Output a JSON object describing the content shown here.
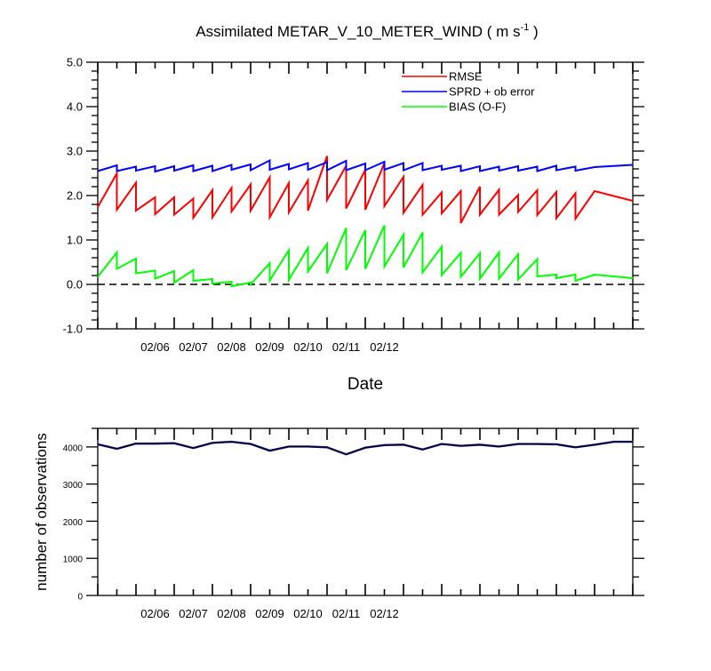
{
  "title_main": "Assimilated METAR_V_10_METER_WIND ( m s",
  "title_sup": "-1",
  "title_close": " )",
  "chart_data": [
    {
      "type": "line",
      "xlabel": "Date",
      "ylabel": "",
      "ylim": [
        -1.0,
        5.0
      ],
      "yticks": [
        "-1.0",
        "0.0",
        "1.0",
        "2.0",
        "3.0",
        "4.0",
        "5.0"
      ],
      "xlim": [
        0,
        14
      ],
      "x_tick_labels": [
        "02/06",
        "02/07",
        "02/08",
        "02/09",
        "02/10",
        "02/11",
        "02/12"
      ],
      "reference_line": 0.0,
      "legend_position": "top-right",
      "x": [
        0,
        0.5,
        1,
        1.5,
        2,
        2.5,
        3,
        3.5,
        4,
        4.5,
        5,
        5.5,
        6,
        6.5,
        7,
        7.5,
        8,
        8.5,
        9,
        9.5,
        10,
        10.5,
        11,
        11.5,
        12,
        12.5,
        13,
        13.5,
        14
      ],
      "series": [
        {
          "name": "RMSE",
          "color": "#ff0000",
          "pre": [
            1.74,
            1.68,
            1.66,
            1.58,
            1.57,
            1.5,
            1.51,
            1.64,
            1.66,
            1.51,
            1.62,
            1.66,
            1.9,
            1.71,
            1.68,
            1.76,
            1.61,
            1.57,
            1.6,
            1.38,
            1.57,
            1.57,
            1.63,
            1.56,
            1.49,
            1.48
          ],
          "post": [
            2.5,
            2.29,
            1.96,
            1.96,
            1.93,
            2.12,
            2.17,
            2.25,
            2.41,
            2.28,
            2.34,
            2.89,
            2.67,
            2.58,
            2.73,
            2.42,
            2.24,
            2.07,
            2.1,
            2.2,
            2.13,
            2.01,
            2.12,
            2.08,
            2.05,
            2.1
          ],
          "end": 1.88
        },
        {
          "name": "SPRD + ob error",
          "color": "#0000ff",
          "pre": [
            2.55,
            2.55,
            2.56,
            2.54,
            2.56,
            2.55,
            2.55,
            2.58,
            2.57,
            2.58,
            2.59,
            2.58,
            2.57,
            2.57,
            2.57,
            2.58,
            2.57,
            2.57,
            2.58,
            2.55,
            2.55,
            2.56,
            2.56,
            2.55,
            2.57,
            2.56
          ],
          "post": [
            2.68,
            2.65,
            2.66,
            2.66,
            2.68,
            2.67,
            2.69,
            2.7,
            2.79,
            2.71,
            2.73,
            2.75,
            2.78,
            2.72,
            2.76,
            2.73,
            2.73,
            2.67,
            2.67,
            2.66,
            2.65,
            2.66,
            2.65,
            2.67,
            2.65,
            2.64
          ],
          "end": 2.69
        },
        {
          "name": "BIAS (O-F)",
          "color": "#00ff00",
          "pre": [
            0.17,
            0.35,
            0.25,
            0.13,
            0.04,
            0.08,
            0.02,
            -0.04,
            0.0,
            0.09,
            0.1,
            0.29,
            0.25,
            0.32,
            0.35,
            0.4,
            0.38,
            0.27,
            0.21,
            0.17,
            0.13,
            0.13,
            0.11,
            0.18,
            0.14,
            0.08
          ],
          "post": [
            0.72,
            0.58,
            0.31,
            0.3,
            0.32,
            0.12,
            0.06,
            0.04,
            0.48,
            0.77,
            0.82,
            0.91,
            1.27,
            1.22,
            1.33,
            1.12,
            1.17,
            0.85,
            0.71,
            0.7,
            0.72,
            0.68,
            0.57,
            0.22,
            0.22,
            0.22
          ],
          "end": 0.14
        }
      ]
    },
    {
      "type": "line",
      "ylabel": "number of observations",
      "ylim": [
        0,
        4500
      ],
      "yticks": [
        "0",
        "1000",
        "2000",
        "3000",
        "4000"
      ],
      "xlim": [
        0,
        14
      ],
      "x_tick_labels": [
        "02/06",
        "02/07",
        "02/08",
        "02/09",
        "02/10",
        "02/11",
        "02/12"
      ],
      "x": [
        0,
        0.5,
        1,
        1.5,
        2,
        2.5,
        3,
        3.5,
        4,
        4.5,
        5,
        5.5,
        6,
        6.5,
        7,
        7.5,
        8,
        8.5,
        9,
        9.5,
        10,
        10.5,
        11,
        11.5,
        12,
        12.5,
        13,
        13.5,
        14
      ],
      "series": [
        {
          "color": "#000000",
          "values": [
            4070,
            3950,
            4090,
            4090,
            4100,
            3970,
            4110,
            4140,
            4080,
            3900,
            4010,
            4010,
            3990,
            3800,
            3980,
            4050,
            4060,
            3930,
            4080,
            4030,
            4060,
            4010,
            4080,
            4080,
            4070,
            3990,
            4060,
            4140,
            4140
          ]
        }
      ]
    }
  ]
}
